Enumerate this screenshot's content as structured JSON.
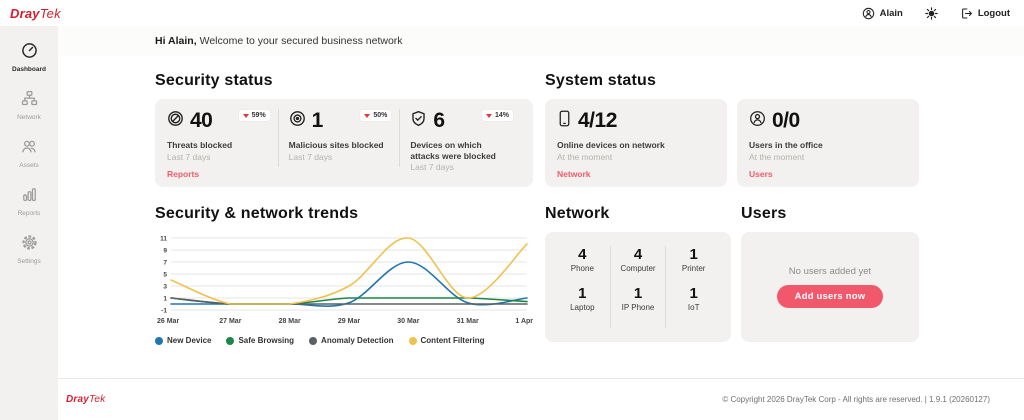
{
  "brand": {
    "logo_dray": "Dray",
    "logo_tek": "Tek",
    "red": "#d81e2e"
  },
  "topbar": {
    "account_label": "Alain",
    "logout_label": "Logout"
  },
  "greeting": {
    "bold": "Hi Alain,",
    "rest": "Welcome to your secured business network"
  },
  "sidebar": {
    "items": [
      {
        "label": "Dashboard",
        "active": true
      },
      {
        "label": "Network",
        "active": false
      },
      {
        "label": "Assets",
        "active": false
      },
      {
        "label": "Reports",
        "active": false
      },
      {
        "label": "Settings",
        "active": false
      }
    ]
  },
  "security_status": {
    "title": "Security status",
    "link": "Reports",
    "cards": [
      {
        "value": "40",
        "delta": "59%",
        "label": "Threats blocked",
        "period": "Last 7 days"
      },
      {
        "value": "1",
        "delta": "50%",
        "label": "Malicious sites blocked",
        "period": "Last 7 days"
      },
      {
        "value": "6",
        "delta": "14%",
        "label": "Devices on which attacks were blocked",
        "period": "Last 7 days"
      }
    ]
  },
  "system_status": {
    "title": "System status",
    "cards": [
      {
        "value": "4/12",
        "label": "Online devices on network",
        "period": "At the moment",
        "link": "Network"
      },
      {
        "value": "0/0",
        "label": "Users in the office",
        "period": "At the moment",
        "link": "Users"
      }
    ]
  },
  "network": {
    "title": "Network",
    "devices": [
      {
        "count": "4",
        "label": "Phone"
      },
      {
        "count": "4",
        "label": "Computer"
      },
      {
        "count": "1",
        "label": "Printer"
      },
      {
        "count": "1",
        "label": "Laptop"
      },
      {
        "count": "1",
        "label": "IP Phone"
      },
      {
        "count": "1",
        "label": "IoT"
      }
    ]
  },
  "users": {
    "title": "Users",
    "empty_text": "No users added yet",
    "button_label": "Add users now",
    "button_color": "#f2586c"
  },
  "chart_data": {
    "type": "line",
    "title": "Security & network trends",
    "categories": [
      "26 Mar",
      "27 Mar",
      "28 Mar",
      "29 Mar",
      "30 Mar",
      "31 Mar",
      "1 Apr"
    ],
    "series": [
      {
        "name": "New Device",
        "color": "#2176ae",
        "values": [
          0,
          0,
          0,
          0.2,
          7,
          0.2,
          1
        ]
      },
      {
        "name": "Safe Browsing",
        "color": "#1d8649",
        "values": [
          1,
          0,
          0,
          1,
          1,
          1,
          0.4
        ]
      },
      {
        "name": "Anomaly Detection",
        "color": "#5b6064",
        "values": [
          1,
          0,
          0,
          0,
          0,
          0,
          0
        ]
      },
      {
        "name": "Content Filtering",
        "color": "#f0c14f",
        "values": [
          4,
          0,
          0,
          3,
          11,
          1,
          10
        ]
      }
    ],
    "ylim": [
      -1,
      11
    ],
    "yticks": [
      -1,
      1,
      3,
      5,
      7,
      9,
      11
    ],
    "grid": true,
    "legend_position": "bottom"
  },
  "footer": {
    "copyright": "© Copyright 2026 DrayTek Corp - All rights are reserved. | 1.9.1 (20260127)"
  }
}
